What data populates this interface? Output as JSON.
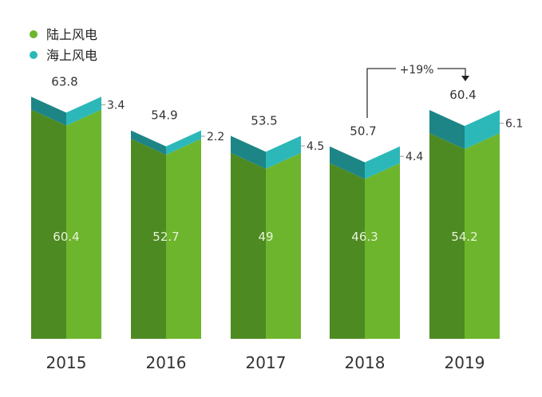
{
  "chart_data": {
    "type": "bar",
    "stacked": true,
    "categories": [
      "2015",
      "2016",
      "2017",
      "2018",
      "2019"
    ],
    "series": [
      {
        "name": "陆上风电",
        "values": [
          60.4,
          52.7,
          49,
          46.3,
          54.2
        ],
        "labels": [
          "60.4",
          "52.7",
          "49",
          "46.3",
          "54.2"
        ],
        "color_dark": "#4e8a22",
        "color_light": "#6db52d"
      },
      {
        "name": "海上风电",
        "values": [
          3.4,
          2.2,
          4.5,
          4.4,
          6.1
        ],
        "labels": [
          "3.4",
          "2.2",
          "4.5",
          "4.4",
          "6.1"
        ],
        "color_dark": "#1d8585",
        "color_light": "#2cb8b8"
      }
    ],
    "totals": [
      "63.8",
      "54.9",
      "53.5",
      "50.7",
      "60.4"
    ],
    "total_values": [
      63.8,
      54.9,
      53.5,
      50.7,
      60.4
    ],
    "annotation": {
      "text": "+19%",
      "from": "2018",
      "to": "2019"
    },
    "legend_position": "top-left",
    "grid": false,
    "ylim": [
      0,
      70
    ]
  }
}
